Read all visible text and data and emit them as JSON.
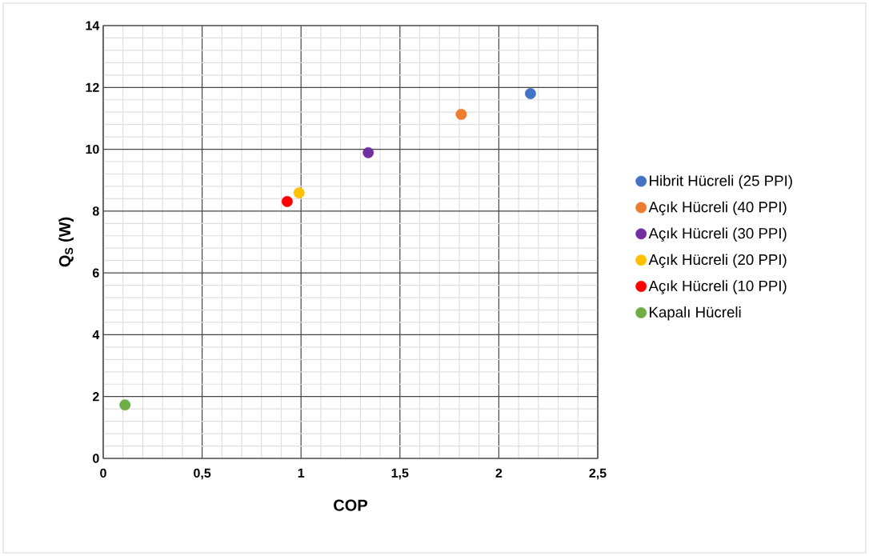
{
  "chart_data": {
    "type": "scatter",
    "xlabel": "COP",
    "ylabel": "Q$_{S}$ (W)",
    "xlim": [
      0,
      2.5
    ],
    "ylim": [
      0,
      14
    ],
    "xticks": [
      0,
      {
        "value": 0.5,
        "label": "0,5"
      },
      1,
      {
        "value": 1.5,
        "label": "1,5"
      },
      2,
      {
        "value": 2.5,
        "label": "2,5"
      }
    ],
    "yticks": [
      0,
      2,
      4,
      6,
      8,
      10,
      12,
      14
    ],
    "grid": true,
    "legend": "right",
    "marker": "circle",
    "series": [
      {
        "name": "Hibrit Hücreli (25 PPI)",
        "color": "#4472c4",
        "x": [
          2.16
        ],
        "values": [
          11.8
        ]
      },
      {
        "name": "Açık Hücreli (40 PPI)",
        "color": "#ed7d31",
        "x": [
          1.81
        ],
        "values": [
          11.13
        ]
      },
      {
        "name": "Açık Hücreli (30 PPI)",
        "color": "#7030a0",
        "x": [
          1.34
        ],
        "values": [
          9.89
        ]
      },
      {
        "name": "Açık Hücreli (20 PPI)",
        "color": "#ffc000",
        "x": [
          0.99
        ],
        "values": [
          8.59
        ]
      },
      {
        "name": "Açık Hücreli (10 PPI)",
        "color": "#ff0000",
        "x": [
          0.93
        ],
        "values": [
          8.31
        ]
      },
      {
        "name": "Kapalı Hücreli",
        "color": "#70ad47",
        "x": [
          0.11
        ],
        "values": [
          1.73
        ]
      }
    ]
  }
}
